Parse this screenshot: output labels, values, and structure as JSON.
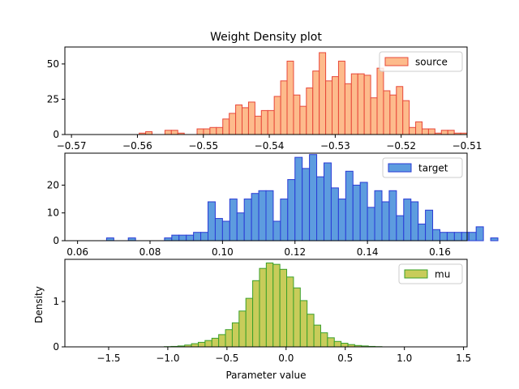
{
  "chart_data": [
    {
      "type": "bar",
      "title": "Weight Density plot",
      "xlabel": "",
      "ylabel": "",
      "xlim": [
        -0.571,
        -0.51
      ],
      "ylim": [
        0,
        62
      ],
      "xticks": [
        -0.57,
        -0.56,
        -0.55,
        -0.54,
        -0.53,
        -0.52,
        -0.51
      ],
      "xtick_labels": [
        "−0.57",
        "−0.56",
        "−0.55",
        "−0.54",
        "−0.53",
        "−0.52",
        "−0.51"
      ],
      "yticks": [
        0,
        25,
        50
      ],
      "ytick_labels": [
        "0",
        "25",
        "50"
      ],
      "legend": "top-right",
      "colors": {
        "fill": "#fdbb8c",
        "edge": "#e8483a"
      },
      "series": [
        {
          "name": "source",
          "bin_start": -0.5685,
          "bin_width": 0.000975,
          "values": [
            0,
            0,
            0,
            0,
            0,
            0,
            0,
            0,
            0,
            1,
            2,
            0,
            0,
            3,
            3,
            1,
            0,
            0,
            4,
            4,
            5,
            5,
            11,
            15,
            21,
            19,
            23,
            13,
            17,
            17,
            27,
            38,
            52,
            28,
            20,
            33,
            45,
            58,
            38,
            41,
            52,
            36,
            43,
            43,
            42,
            26,
            47,
            31,
            28,
            34,
            24,
            5,
            9,
            4,
            4,
            1,
            3,
            3,
            1,
            1
          ]
        }
      ]
    },
    {
      "type": "bar",
      "title": "",
      "xlabel": "",
      "ylabel": "",
      "xlim": [
        0.0565,
        0.1675
      ],
      "ylim": [
        0,
        31.5
      ],
      "xticks": [
        0.06,
        0.08,
        0.1,
        0.12,
        0.14,
        0.16
      ],
      "xtick_labels": [
        "0.06",
        "0.08",
        "0.10",
        "0.12",
        "0.14",
        "0.16"
      ],
      "yticks": [
        0,
        10,
        20
      ],
      "ytick_labels": [
        "0",
        "10",
        "20"
      ],
      "legend": "top-right",
      "colors": {
        "fill": "#5d9cdf",
        "edge": "#2a3bd6"
      },
      "series": [
        {
          "name": "target",
          "bin_start": 0.06,
          "bin_width": 0.002,
          "values": [
            0,
            0,
            0,
            0,
            1,
            0,
            0,
            1,
            0,
            0,
            0,
            0,
            1,
            2,
            2,
            2,
            3,
            3,
            14,
            8,
            7,
            15,
            10,
            15,
            17,
            18,
            18,
            7,
            15,
            22,
            30,
            26,
            31,
            23,
            28,
            19,
            15,
            25,
            20,
            21,
            12,
            18,
            14,
            18,
            9,
            15,
            14,
            6,
            11,
            4,
            3,
            3,
            3,
            3,
            3,
            5,
            0,
            1,
            0,
            0
          ]
        }
      ]
    },
    {
      "type": "bar",
      "title": "",
      "xlabel": "Parameter value",
      "ylabel": "Density",
      "xlim": [
        -1.87,
        1.53
      ],
      "ylim": [
        0,
        1.93
      ],
      "xticks": [
        -1.5,
        -1.0,
        -0.5,
        0.0,
        0.5,
        1.0,
        1.5
      ],
      "xtick_labels": [
        "−1.5",
        "−1.0",
        "−0.5",
        "0.0",
        "0.5",
        "1.0",
        "1.5"
      ],
      "yticks": [
        0,
        1
      ],
      "ytick_labels": [
        "0",
        "1"
      ],
      "legend": "top-right",
      "colors": {
        "fill": "#c8cc5a",
        "edge": "#3aa02a"
      },
      "series": [
        {
          "name": "mu",
          "bin_start": -1.72,
          "bin_width": 0.0575,
          "values": [
            0,
            0,
            0,
            0,
            0,
            0,
            0,
            0,
            0,
            0,
            0,
            0,
            0.005,
            0.01,
            0.02,
            0.04,
            0.07,
            0.1,
            0.14,
            0.19,
            0.27,
            0.38,
            0.53,
            0.79,
            1.07,
            1.46,
            1.73,
            1.85,
            1.82,
            1.71,
            1.54,
            1.3,
            1.02,
            0.72,
            0.48,
            0.31,
            0.2,
            0.12,
            0.08,
            0.05,
            0.03,
            0.02,
            0.01,
            0.005,
            0,
            0,
            0,
            0,
            0,
            0,
            0,
            0,
            0,
            0,
            0,
            0,
            0,
            0,
            0,
            0
          ]
        }
      ]
    }
  ]
}
